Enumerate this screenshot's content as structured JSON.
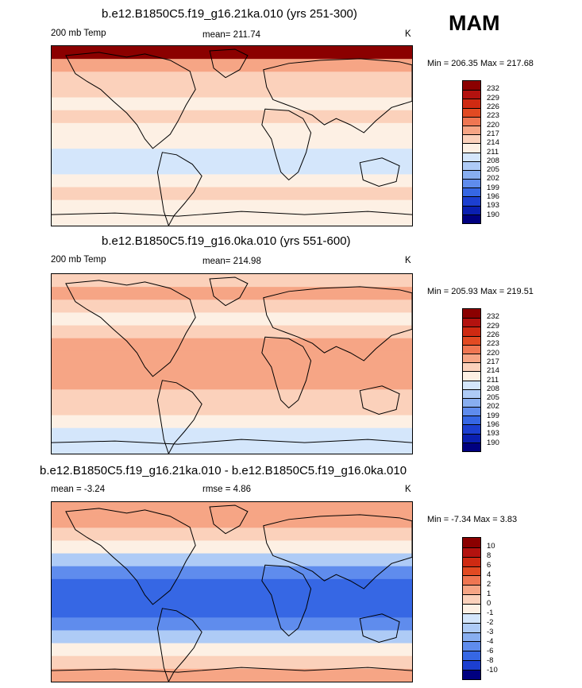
{
  "season": "MAM",
  "panels": [
    {
      "title": "b.e12.B1850C5.f19_g16.21ka.010 (yrs 251-300)",
      "left_label": "200 mb Temp",
      "center_label": "mean= 211.74",
      "units": "K",
      "minmax": "Min = 206.35 Max = 217.68",
      "colorbar_labels": [
        "232",
        "229",
        "226",
        "223",
        "220",
        "217",
        "214",
        "211",
        "208",
        "205",
        "202",
        "199",
        "196",
        "193",
        "190"
      ],
      "colors": [
        "#8b0000",
        "#b3120f",
        "#cf2a12",
        "#e24a22",
        "#ef7652",
        "#f6a585",
        "#fbd1bb",
        "#fdf0e4",
        "#d4e6fb",
        "#aecbf6",
        "#88aef0",
        "#5f8ced",
        "#3667e4",
        "#1c3fd0",
        "#0a1fb0",
        "#000080"
      ],
      "bands": [
        0,
        5,
        6,
        6,
        7,
        6,
        7,
        7,
        8,
        8,
        7,
        6,
        7,
        7
      ]
    },
    {
      "title": "b.e12.B1850C5.f19_g16.0ka.010 (yrs 551-600)",
      "left_label": "200 mb Temp",
      "center_label": "mean= 214.98",
      "units": "K",
      "minmax": "Min = 205.93 Max = 219.51",
      "colorbar_labels": [
        "232",
        "229",
        "226",
        "223",
        "220",
        "217",
        "214",
        "211",
        "208",
        "205",
        "202",
        "199",
        "196",
        "193",
        "190"
      ],
      "colors": [
        "#8b0000",
        "#b3120f",
        "#cf2a12",
        "#e24a22",
        "#ef7652",
        "#f6a585",
        "#fbd1bb",
        "#fdf0e4",
        "#d4e6fb",
        "#aecbf6",
        "#88aef0",
        "#5f8ced",
        "#3667e4",
        "#1c3fd0",
        "#0a1fb0",
        "#000080"
      ],
      "bands": [
        6,
        5,
        6,
        7,
        6,
        5,
        5,
        5,
        5,
        6,
        6,
        7,
        8,
        8
      ]
    },
    {
      "title": "b.e12.B1850C5.f19_g16.21ka.010 - b.e12.B1850C5.f19_g16.0ka.010",
      "left_label": "mean =  -3.24",
      "center_label": "rmse =   4.86",
      "units": "K",
      "minmax": "Min =  -7.34 Max =   3.83",
      "colorbar_labels": [
        "10",
        "8",
        "6",
        "4",
        "2",
        "1",
        "0",
        "-1",
        "-2",
        "-3",
        "-4",
        "-6",
        "-8",
        "-10"
      ],
      "colors": [
        "#8b0000",
        "#b3120f",
        "#cf2a12",
        "#e24a22",
        "#ef7652",
        "#f6a585",
        "#fbd1bb",
        "#fdf0e4",
        "#d4e6fb",
        "#aecbf6",
        "#88aef0",
        "#5f8ced",
        "#3667e4",
        "#1c3fd0",
        "#000080"
      ],
      "bands": [
        5,
        5,
        6,
        7,
        9,
        11,
        12,
        12,
        12,
        11,
        9,
        7,
        6,
        5
      ]
    }
  ]
}
